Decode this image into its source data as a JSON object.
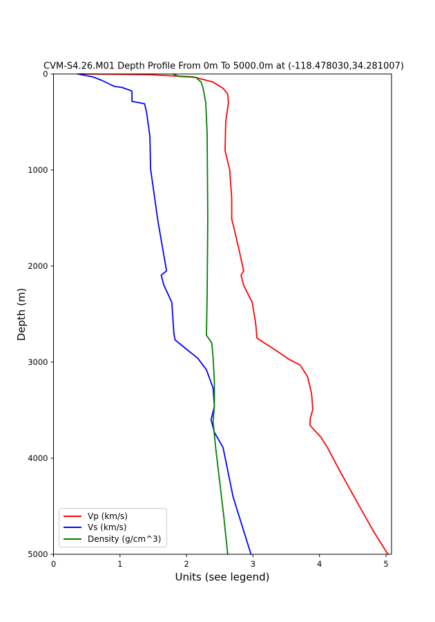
{
  "page": {
    "background": "#ffffff"
  },
  "chart_data": {
    "type": "line",
    "title": "CVM-S4.26.M01 Depth Profile From 0m To 5000.0m at (-118.478030,34.281007)",
    "xlabel": "Units (see legend)",
    "ylabel": "Depth (m)",
    "xlim": [
      0,
      5.083
    ],
    "ylim": [
      0,
      5000
    ],
    "y_axis_inverted": true,
    "x_ticks": [
      0,
      1,
      2,
      3,
      4,
      5
    ],
    "y_ticks": [
      0,
      1000,
      2000,
      3000,
      4000,
      5000
    ],
    "grid": false,
    "legend_position": "lower-left",
    "axis_color": "#000000",
    "series": [
      {
        "id": "vp",
        "name": "Vp (km/s)",
        "color": "#ff0000",
        "points": [
          [
            0.4,
            0
          ],
          [
            1.45,
            8
          ],
          [
            2.1,
            30
          ],
          [
            2.4,
            85
          ],
          [
            2.55,
            150
          ],
          [
            2.62,
            210
          ],
          [
            2.63,
            300
          ],
          [
            2.59,
            500
          ],
          [
            2.58,
            800
          ],
          [
            2.65,
            1000
          ],
          [
            2.68,
            1300
          ],
          [
            2.68,
            1510
          ],
          [
            2.72,
            1620
          ],
          [
            2.79,
            1830
          ],
          [
            2.86,
            2050
          ],
          [
            2.82,
            2095
          ],
          [
            2.86,
            2200
          ],
          [
            2.99,
            2380
          ],
          [
            3.04,
            2600
          ],
          [
            3.06,
            2750
          ],
          [
            3.35,
            2880
          ],
          [
            3.54,
            2970
          ],
          [
            3.71,
            3030
          ],
          [
            3.82,
            3150
          ],
          [
            3.88,
            3320
          ],
          [
            3.9,
            3490
          ],
          [
            3.86,
            3590
          ],
          [
            3.86,
            3660
          ],
          [
            4.02,
            3780
          ],
          [
            4.12,
            3890
          ],
          [
            4.32,
            4150
          ],
          [
            4.6,
            4500
          ],
          [
            4.82,
            4770
          ],
          [
            5.03,
            5000
          ]
        ]
      },
      {
        "id": "vs",
        "name": "Vs (km/s)",
        "color": "#0000ff",
        "points": [
          [
            0.36,
            0
          ],
          [
            0.59,
            30
          ],
          [
            0.72,
            65
          ],
          [
            0.87,
            115
          ],
          [
            0.92,
            130
          ],
          [
            1.03,
            140
          ],
          [
            1.16,
            173
          ],
          [
            1.18,
            180
          ],
          [
            1.18,
            285
          ],
          [
            1.37,
            310
          ],
          [
            1.4,
            400
          ],
          [
            1.45,
            650
          ],
          [
            1.46,
            990
          ],
          [
            1.57,
            1530
          ],
          [
            1.7,
            2050
          ],
          [
            1.62,
            2095
          ],
          [
            1.66,
            2200
          ],
          [
            1.78,
            2380
          ],
          [
            1.81,
            2700
          ],
          [
            1.83,
            2770
          ],
          [
            1.99,
            2860
          ],
          [
            2.17,
            2960
          ],
          [
            2.3,
            3080
          ],
          [
            2.4,
            3270
          ],
          [
            2.42,
            3460
          ],
          [
            2.37,
            3600
          ],
          [
            2.42,
            3730
          ],
          [
            2.55,
            3890
          ],
          [
            2.7,
            4400
          ],
          [
            2.97,
            5000
          ]
        ]
      },
      {
        "id": "density",
        "name": "Density (g/cm^3)",
        "color": "#008000",
        "points": [
          [
            1.8,
            0
          ],
          [
            1.88,
            25
          ],
          [
            2.14,
            35
          ],
          [
            2.22,
            85
          ],
          [
            2.25,
            150
          ],
          [
            2.29,
            300
          ],
          [
            2.31,
            620
          ],
          [
            2.32,
            1500
          ],
          [
            2.31,
            2300
          ],
          [
            2.3,
            2720
          ],
          [
            2.38,
            2800
          ],
          [
            2.4,
            2950
          ],
          [
            2.42,
            3200
          ],
          [
            2.42,
            3450
          ],
          [
            2.4,
            3620
          ],
          [
            2.44,
            3900
          ],
          [
            2.5,
            4250
          ],
          [
            2.56,
            4600
          ],
          [
            2.62,
            5000
          ]
        ]
      }
    ]
  }
}
